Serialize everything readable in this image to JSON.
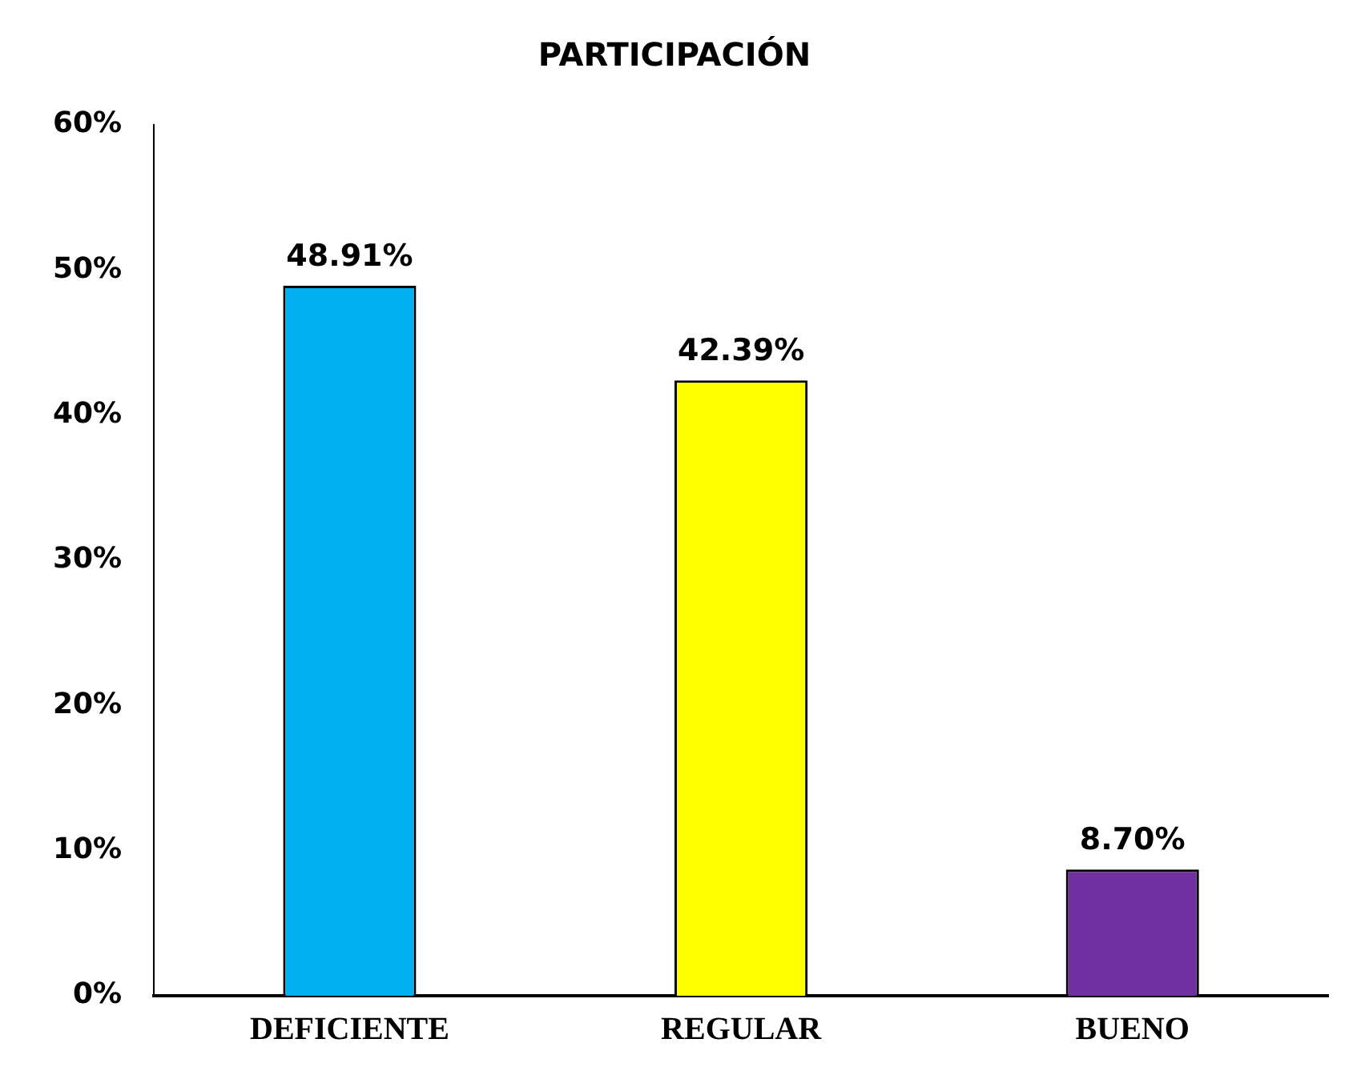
{
  "chart_data": {
    "type": "bar",
    "title": "PARTICIPACIÓN",
    "categories": [
      "DEFICIENTE",
      "REGULAR",
      "BUENO"
    ],
    "values": [
      48.91,
      42.39,
      8.7
    ],
    "colors": [
      "#00b0f0",
      "#ffff00",
      "#7030a0"
    ],
    "value_labels": [
      "48.91%",
      "42.39%",
      "8.70%"
    ],
    "ylim": [
      0,
      60
    ],
    "yticks": [
      {
        "value": 0,
        "label": "0%"
      },
      {
        "value": 10,
        "label": "10%"
      },
      {
        "value": 20,
        "label": "20%"
      },
      {
        "value": 30,
        "label": "30%"
      },
      {
        "value": 40,
        "label": "40%"
      },
      {
        "value": 50,
        "label": "50%"
      },
      {
        "value": 60,
        "label": "60%"
      }
    ],
    "grid": false,
    "legend": false
  }
}
